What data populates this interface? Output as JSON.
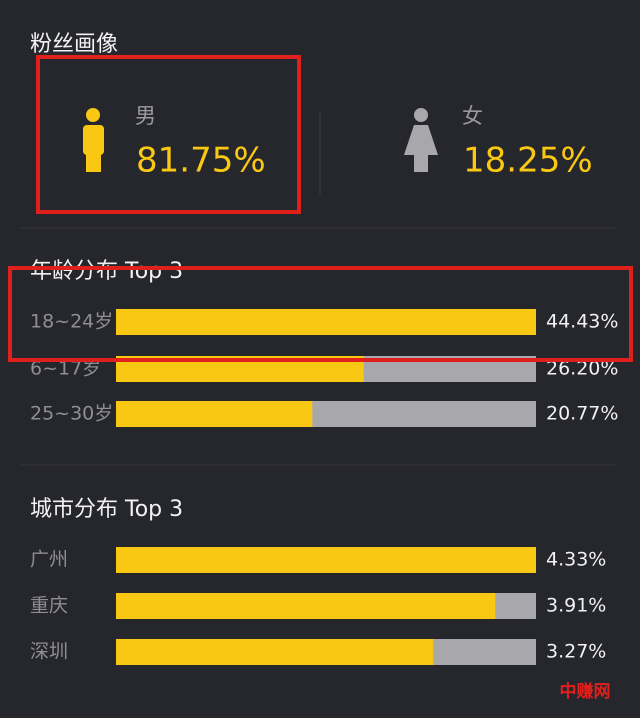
{
  "header": {
    "title": "粉丝画像"
  },
  "gender": {
    "male": {
      "label": "男",
      "value": "81.75%"
    },
    "female": {
      "label": "女",
      "value": "18.25%"
    }
  },
  "age": {
    "title": "年龄分布 Top 3",
    "rows": [
      {
        "label": "18~24岁",
        "value": 44.43,
        "value_label": "44.43%"
      },
      {
        "label": "6~17岁",
        "value": 26.2,
        "value_label": "26.20%"
      },
      {
        "label": "25~30岁",
        "value": 20.77,
        "value_label": "20.77%"
      }
    ]
  },
  "city": {
    "title": "城市分布 Top 3",
    "rows": [
      {
        "label": "广州",
        "value": 4.33,
        "value_label": "4.33%"
      },
      {
        "label": "重庆",
        "value": 3.91,
        "value_label": "3.91%"
      },
      {
        "label": "深圳",
        "value": 3.27,
        "value_label": "3.27%"
      }
    ]
  },
  "watermark": "中赚网"
}
